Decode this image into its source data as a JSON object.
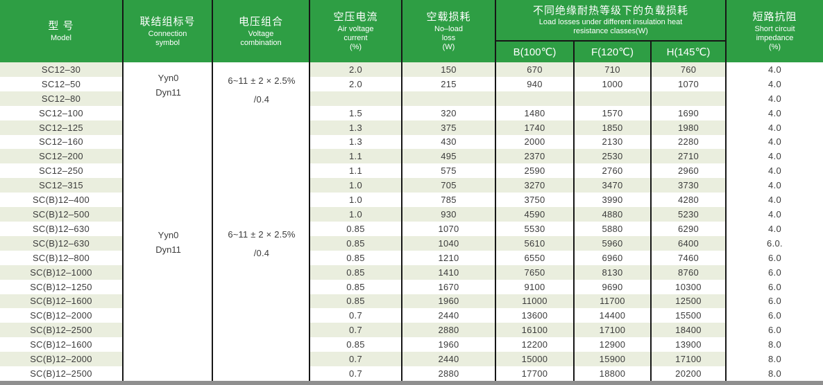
{
  "colors": {
    "header_green": "#2E9E44",
    "stripe_green": "#EAEEDE",
    "border_black": "#161616",
    "bottom_bar_gray": "#8F8F8F"
  },
  "table": {
    "header": {
      "model": {
        "zh": "型 号",
        "en": "Model"
      },
      "connection": {
        "zh": "联结组标号",
        "en": "Connection\nsymbol"
      },
      "voltage": {
        "zh": "电压组合",
        "en": "Voltage\ncombination"
      },
      "air_current": {
        "zh": "空压电流",
        "en": "Air voltage\ncurrent\n(%)"
      },
      "no_load_loss": {
        "zh": "空载损耗",
        "en": "No–load\nloss\n(W)"
      },
      "load_losses": {
        "zh": "不同绝缘耐热等级下的负载损耗",
        "en": "Load losses under different insulation heat\nresistance classes(W)",
        "sub": [
          "B(100℃)",
          "F(120℃)",
          "H(145℃)"
        ]
      },
      "impedance": {
        "zh": "短路抗阻",
        "en": "Short circuit\nimpedance\n(%)"
      }
    },
    "groups": [
      {
        "connection": "Yyn0\nDyn11",
        "voltage": "6~11 ± 2 × 2.5%\n/0.4"
      },
      {
        "connection": "Yyn0\nDyn11",
        "voltage": "6~11 ± 2 × 2.5%\n/0.4"
      }
    ],
    "rows": [
      [
        "SC12–30",
        "2.0",
        "150",
        "670",
        "710",
        "760",
        "4.0"
      ],
      [
        "SC12–50",
        "2.0",
        "215",
        "940",
        "1000",
        "1070",
        "4.0"
      ],
      [
        "SC12–80",
        "",
        "",
        "",
        "",
        "",
        "4.0"
      ],
      [
        "SC12–100",
        "1.5",
        "320",
        "1480",
        "1570",
        "1690",
        "4.0"
      ],
      [
        "SC12–125",
        "1.3",
        "375",
        "1740",
        "1850",
        "1980",
        "4.0"
      ],
      [
        "SC12–160",
        "1.3",
        "430",
        "2000",
        "2130",
        "2280",
        "4.0"
      ],
      [
        "SC12–200",
        "1.1",
        "495",
        "2370",
        "2530",
        "2710",
        "4.0"
      ],
      [
        "SC12–250",
        "1.1",
        "575",
        "2590",
        "2760",
        "2960",
        "4.0"
      ],
      [
        "SC12–315",
        "1.0",
        "705",
        "3270",
        "3470",
        "3730",
        "4.0"
      ],
      [
        "SC(B)12–400",
        "1.0",
        "785",
        "3750",
        "3990",
        "4280",
        "4.0"
      ],
      [
        "SC(B)12–500",
        "1.0",
        "930",
        "4590",
        "4880",
        "5230",
        "4.0"
      ],
      [
        "SC(B)12–630",
        "0.85",
        "1070",
        "5530",
        "5880",
        "6290",
        "4.0"
      ],
      [
        "SC(B)12–630",
        "0.85",
        "1040",
        "5610",
        "5960",
        "6400",
        "6.0."
      ],
      [
        "SC(B)12–800",
        "0.85",
        "1210",
        "6550",
        "6960",
        "7460",
        "6.0"
      ],
      [
        "SC(B)12–1000",
        "0.85",
        "1410",
        "7650",
        "8130",
        "8760",
        "6.0"
      ],
      [
        "SC(B)12–1250",
        "0.85",
        "1670",
        "9100",
        "9690",
        "10300",
        "6.0"
      ],
      [
        "SC(B)12–1600",
        "0.85",
        "1960",
        "11000",
        "11700",
        "12500",
        "6.0"
      ],
      [
        "SC(B)12–2000",
        "0.7",
        "2440",
        "13600",
        "14400",
        "15500",
        "6.0"
      ],
      [
        "SC(B)12–2500",
        "0.7",
        "2880",
        "16100",
        "17100",
        "18400",
        "6.0"
      ],
      [
        "SC(B)12–1600",
        "0.85",
        "1960",
        "12200",
        "12900",
        "13900",
        "8.0"
      ],
      [
        "SC(B)12–2000",
        "0.7",
        "2440",
        "15000",
        "15900",
        "17100",
        "8.0"
      ],
      [
        "SC(B)12–2500",
        "0.7",
        "2880",
        "17700",
        "18800",
        "20200",
        "8.0"
      ]
    ]
  }
}
